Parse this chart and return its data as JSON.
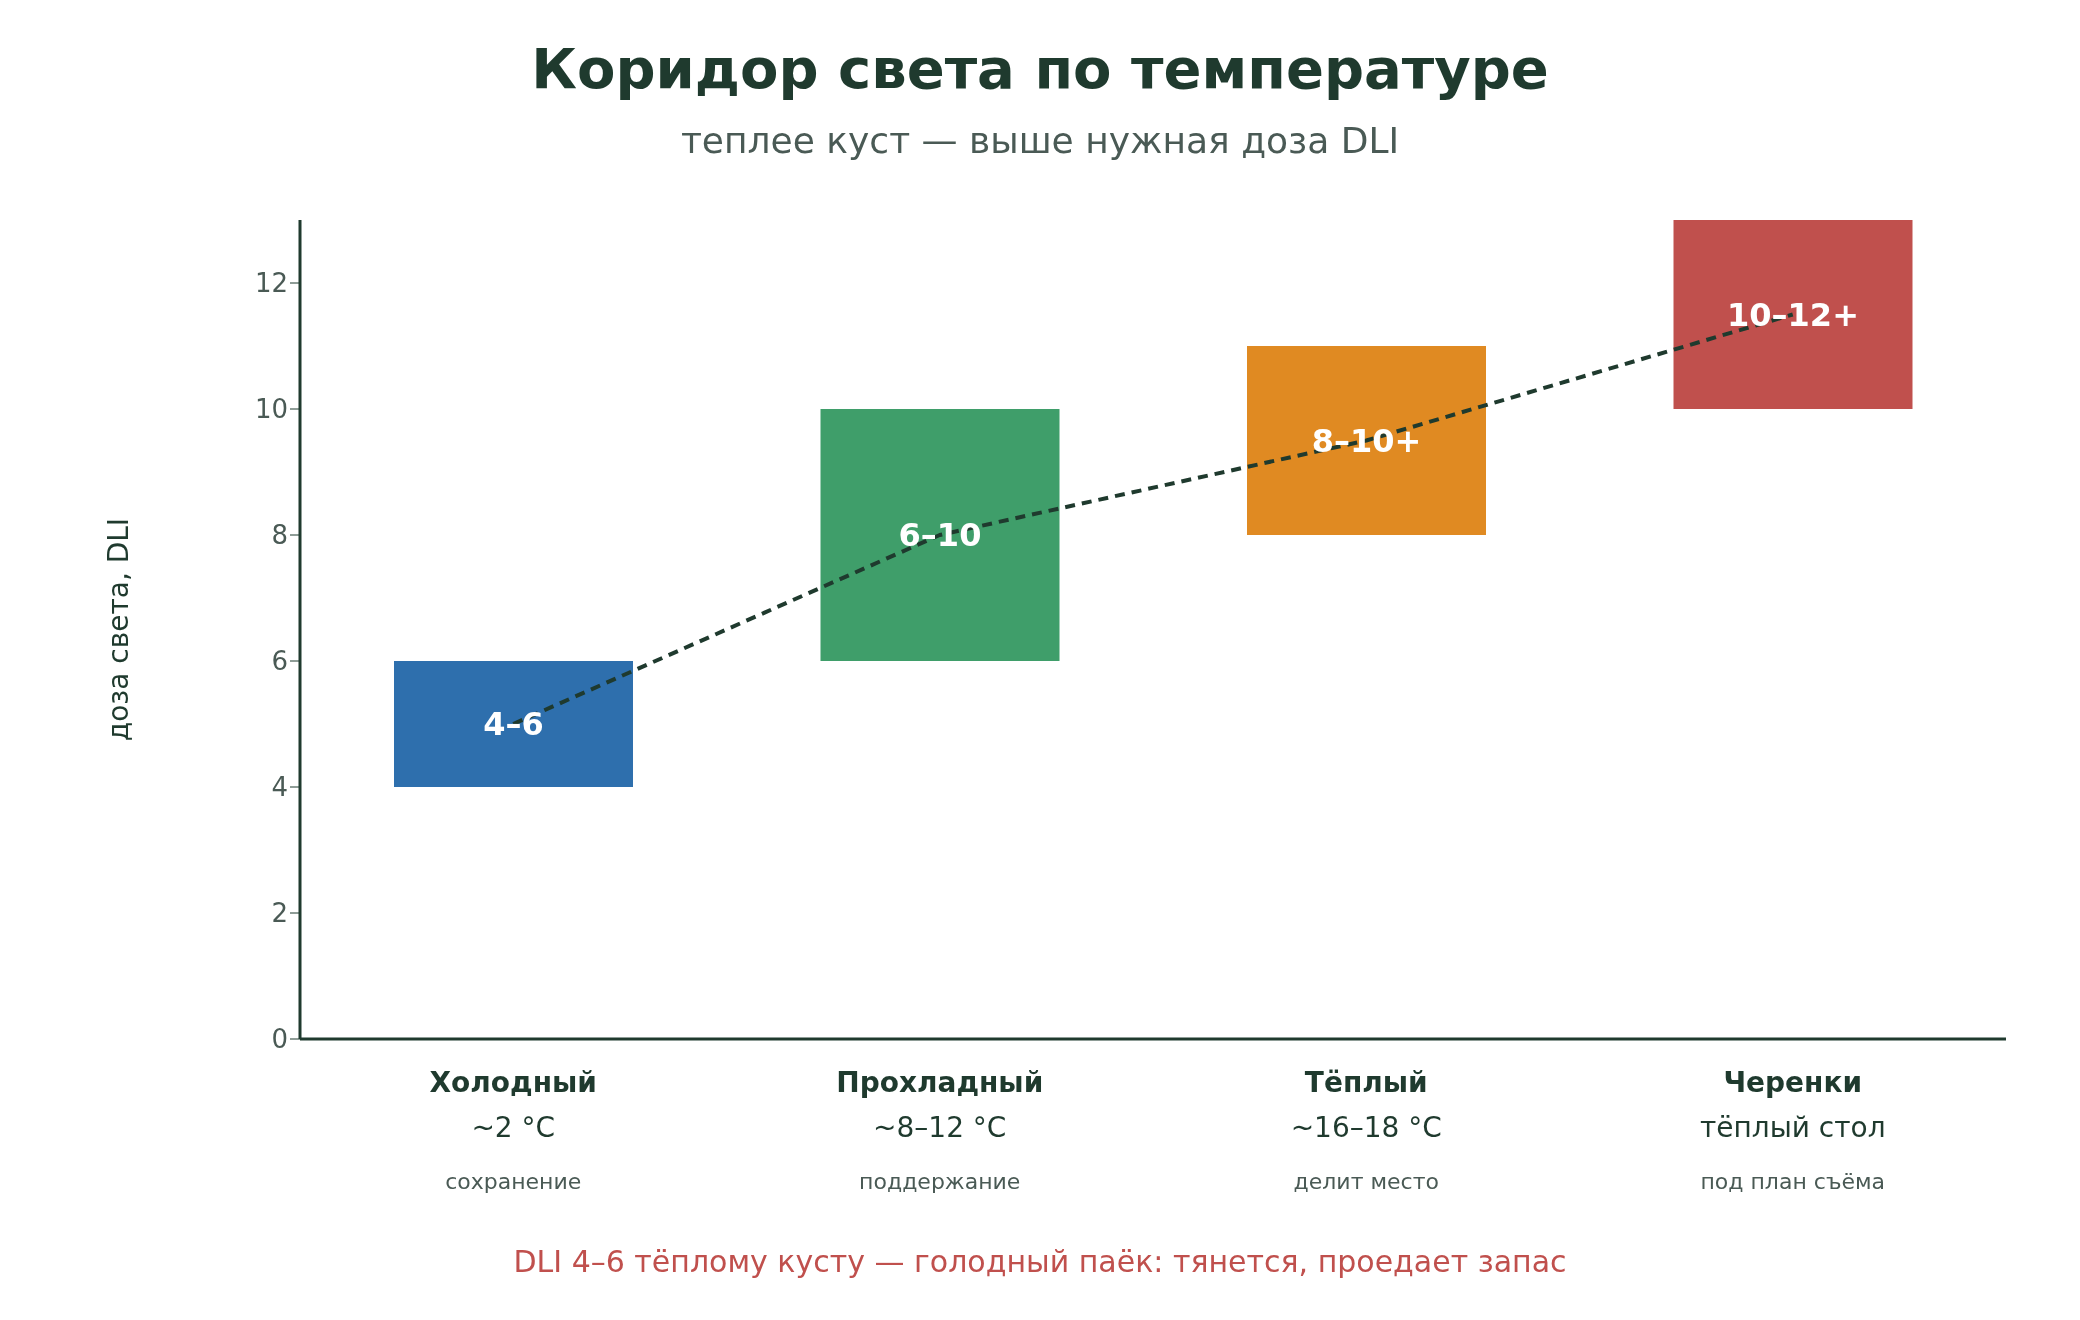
{
  "chart_data": {
    "type": "bar",
    "title": "Коридор света по температуре",
    "subtitle": "теплее куст — выше нужная доза DLI",
    "ylabel": "доза света, DLI",
    "categories": [
      "Холодный\n~2 °C\nсохранение",
      "Прохладный\n~8–12 °C\nподдержание",
      "Тёплый\n~16–18 °C\nделит место",
      "Черенки\nтёплый стол\nпод план съёма"
    ],
    "series": [
      {
        "colors": [
          "#2e6fad",
          "#3f9e6a",
          "#e08a22",
          "#c0504d"
        ],
        "base": [
          4,
          6,
          8,
          10
        ],
        "values": [
          2,
          4,
          3,
          3
        ],
        "value_labels": [
          "4–6",
          "6–10",
          "8–10+",
          "10–12+"
        ]
      },
      {
        "type": "line",
        "color": "#1f3a2e",
        "values": [
          5,
          8,
          9.5,
          11.5
        ],
        "line_style": "dashed"
      }
    ],
    "ylim": [
      0,
      13
    ],
    "yticks": [
      0,
      2,
      4,
      6,
      8,
      10,
      12
    ],
    "grid": false,
    "legend": false,
    "annotations": [
      "DLI 4–6 тёплому кусту — голодный паёк: тянется, проедает запас"
    ]
  }
}
